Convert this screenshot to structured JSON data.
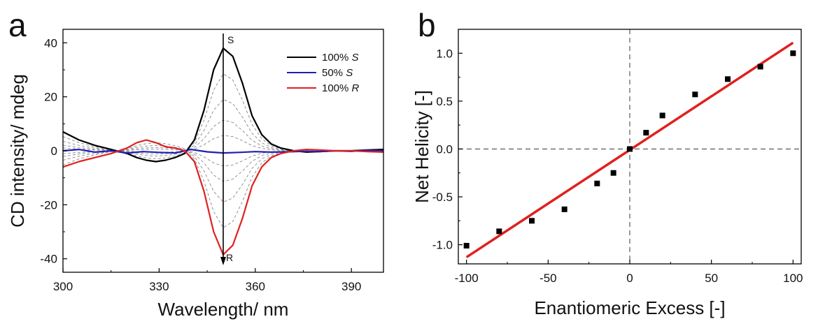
{
  "chart_data": [
    {
      "type": "line",
      "panel_label": "a",
      "xlabel": "Wavelength/ nm",
      "ylabel": "CD intensity/ mdeg",
      "xlim": [
        300,
        400
      ],
      "ylim": [
        -45,
        45
      ],
      "xticks": [
        300,
        330,
        360,
        390
      ],
      "yticks": [
        -40,
        -20,
        0,
        20,
        40
      ],
      "grid": false,
      "legend_position": "top-right",
      "legend": [
        {
          "prefix": "100% ",
          "italic": "S",
          "color": "#000000"
        },
        {
          "prefix": "50% ",
          "italic": "S",
          "color": "#1f1fb4"
        },
        {
          "prefix": "100% ",
          "italic": "R",
          "color": "#e0201f"
        }
      ],
      "annotations": {
        "top": "S",
        "bottom": "R",
        "arrow_x": 350
      },
      "series": [
        {
          "name": "100% S",
          "color": "#000000",
          "x": [
            300,
            305,
            310,
            315,
            320,
            323,
            326,
            329,
            332,
            335,
            338,
            341,
            344,
            347,
            350,
            353,
            356,
            359,
            362,
            365,
            368,
            372,
            376,
            380,
            385,
            390,
            395,
            400
          ],
          "y": [
            7,
            4,
            2,
            0.5,
            -1,
            -2.5,
            -3.5,
            -4,
            -3.5,
            -2.5,
            -1,
            4,
            15,
            30,
            38,
            35,
            25,
            13,
            6,
            2.5,
            1,
            0,
            -0.5,
            -0.3,
            0,
            0,
            0.3,
            0.5
          ]
        },
        {
          "name": "50% S",
          "color": "#1f1fb4",
          "x": [
            300,
            305,
            310,
            315,
            320,
            325,
            330,
            335,
            340,
            345,
            350,
            355,
            360,
            365,
            370,
            375,
            380,
            385,
            390,
            395,
            400
          ],
          "y": [
            0,
            0.5,
            -0.5,
            0,
            -0.8,
            -0.3,
            -0.6,
            -0.8,
            0.5,
            -0.4,
            -0.8,
            -0.6,
            -0.3,
            -0.5,
            -0.4,
            -0.2,
            -0.3,
            0,
            -0.2,
            0.2,
            0
          ]
        },
        {
          "name": "100% R",
          "color": "#e0201f",
          "x": [
            300,
            305,
            310,
            315,
            320,
            323,
            326,
            329,
            332,
            335,
            338,
            341,
            344,
            347,
            350,
            353,
            356,
            359,
            362,
            365,
            368,
            372,
            376,
            380,
            385,
            390,
            395,
            400
          ],
          "y": [
            -6,
            -4,
            -2.5,
            -1,
            1,
            3,
            4,
            3,
            1.5,
            1,
            0,
            -4,
            -15,
            -30,
            -38.5,
            -35,
            -25,
            -13,
            -6,
            -2.5,
            -1,
            0,
            0.5,
            0.3,
            0,
            0,
            -0.3,
            -0.5
          ]
        }
      ],
      "intermediate_series_scales": [
        0.75,
        0.5,
        0.3,
        0.15,
        -0.15,
        -0.3,
        -0.5,
        -0.75
      ]
    },
    {
      "type": "scatter",
      "panel_label": "b",
      "xlabel": "Enantiomeric Excess [-]",
      "ylabel": "Net Helicity [-]",
      "xlim": [
        -105,
        105
      ],
      "ylim": [
        -1.2,
        1.25
      ],
      "xticks": [
        -100,
        -50,
        0,
        50,
        100
      ],
      "yticks": [
        -1.0,
        -0.5,
        0.0,
        0.5,
        1.0
      ],
      "ytick_labels": [
        "-1.0",
        "-0.5",
        "0.0",
        "0.5",
        "1.0"
      ],
      "grid": false,
      "reference_lines": {
        "x": 0,
        "y": 0
      },
      "points": {
        "x": [
          -100,
          -80,
          -60,
          -40,
          -20,
          -10,
          0,
          10,
          20,
          40,
          60,
          80,
          100
        ],
        "y": [
          -1.01,
          -0.86,
          -0.75,
          -0.63,
          -0.36,
          -0.25,
          0.0,
          0.17,
          0.35,
          0.57,
          0.73,
          0.86,
          1.0
        ]
      },
      "fit_line": {
        "x": [
          -100,
          100
        ],
        "y": [
          -1.13,
          1.11
        ],
        "color": "#e0201f"
      }
    }
  ]
}
